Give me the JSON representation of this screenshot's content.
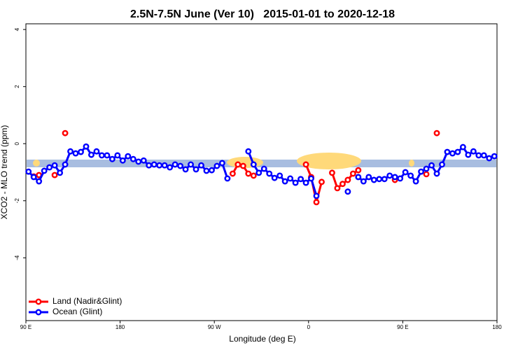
{
  "chart_data": {
    "type": "line",
    "title": "2.5N-7.5N June (Ver 10)   2015-01-01 to 2020-12-18",
    "x_label": "Longitude (deg E)",
    "y_label": "XCO2 - MLO trend (ppm)",
    "xlim": [
      90,
      540
    ],
    "ylim": [
      -6.2,
      4.2
    ],
    "xticks": [
      {
        "value": 90,
        "label": "90 E"
      },
      180,
      {
        "value": 270,
        "label": "90 W"
      },
      {
        "value": 360,
        "label": "0"
      },
      {
        "value": 450,
        "label": "90 E"
      },
      {
        "value": 540,
        "label": "180"
      }
    ],
    "yticks": [
      -4,
      -2,
      0,
      2,
      4
    ],
    "legend": "bottom-left",
    "series": [
      {
        "name": "Land (Nadir&Glint)",
        "color": "#ff0000",
        "x": [
          97.5,
          102.5,
          117.5,
          127.5,
          287.5,
          292.5,
          297.5,
          302.5,
          307.5,
          357.5,
          362.5,
          367.5,
          372.5,
          382.5,
          387.5,
          392.5,
          397.5,
          402.5,
          407.5,
          442.5,
          472.5,
          482.5
        ],
        "values": [
          -1.15,
          -1.1,
          -1.1,
          0.37,
          -1.05,
          -0.73,
          -0.78,
          -1.05,
          -1.12,
          -0.73,
          -1.17,
          -2.05,
          -1.34,
          -1.02,
          -1.56,
          -1.41,
          -1.27,
          -1.05,
          -0.93,
          -1.27,
          -1.07,
          0.37
        ]
      },
      {
        "name": "Ocean (Glint)",
        "color": "#0000ff",
        "x": [
          92.5,
          97.5,
          102.5,
          107.5,
          112.5,
          117.5,
          122.5,
          127.5,
          132.5,
          137.5,
          142.5,
          147.5,
          152.5,
          157.5,
          162.5,
          167.5,
          172.5,
          177.5,
          182.5,
          187.5,
          192.5,
          197.5,
          202.5,
          207.5,
          212.5,
          217.5,
          222.5,
          227.5,
          232.5,
          237.5,
          242.5,
          247.5,
          252.5,
          257.5,
          262.5,
          267.5,
          272.5,
          277.5,
          282.5,
          302.5,
          307.5,
          312.5,
          317.5,
          322.5,
          327.5,
          332.5,
          337.5,
          342.5,
          347.5,
          352.5,
          357.5,
          362.5,
          367.5,
          397.5,
          407.5,
          412.5,
          417.5,
          422.5,
          427.5,
          432.5,
          437.5,
          442.5,
          447.5,
          452.5,
          457.5,
          462.5,
          467.5,
          472.5,
          477.5,
          482.5,
          487.5,
          492.5,
          497.5,
          502.5,
          507.5,
          512.5,
          517.5,
          522.5,
          527.5,
          532.5,
          537.5
        ],
        "values": [
          -0.98,
          -1.17,
          -1.32,
          -0.95,
          -0.83,
          -0.76,
          -1.02,
          -0.73,
          -0.27,
          -0.34,
          -0.29,
          -0.1,
          -0.39,
          -0.27,
          -0.41,
          -0.41,
          -0.54,
          -0.41,
          -0.59,
          -0.44,
          -0.54,
          -0.63,
          -0.59,
          -0.76,
          -0.73,
          -0.76,
          -0.76,
          -0.83,
          -0.73,
          -0.78,
          -0.9,
          -0.73,
          -0.9,
          -0.76,
          -0.95,
          -0.93,
          -0.78,
          -0.68,
          -1.22,
          -0.27,
          -0.73,
          -1.02,
          -0.88,
          -1.05,
          -1.2,
          -1.12,
          -1.32,
          -1.22,
          -1.37,
          -1.24,
          -1.37,
          -1.22,
          -1.83,
          -1.68,
          -1.17,
          -1.32,
          -1.17,
          -1.27,
          -1.24,
          -1.24,
          -1.12,
          -1.17,
          -1.22,
          -1.0,
          -1.12,
          -1.32,
          -0.98,
          -0.88,
          -0.76,
          -1.05,
          -0.73,
          -0.29,
          -0.34,
          -0.29,
          -0.12,
          -0.39,
          -0.27,
          -0.41,
          -0.41,
          -0.51,
          -0.44
        ]
      }
    ]
  }
}
